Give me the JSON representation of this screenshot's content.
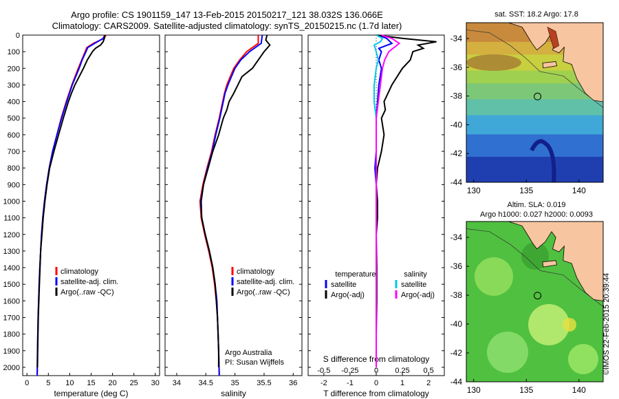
{
  "header": {
    "line1": "Argo profile: CS 1901159_147 13-Feb-2015 20150217_121 38.032S 136.066E",
    "line2": "Climatology: CARS2009. Satellite-adjusted climatology: synTS_20150215.nc (1.7d later)"
  },
  "chart_data": [
    {
      "id": "temperature",
      "type": "line",
      "xlabel": "temperature (deg C)",
      "ylabel": "",
      "xlim": [
        -1,
        31
      ],
      "ylim": [
        2050,
        0
      ],
      "xticks": [
        0,
        5,
        10,
        15,
        20,
        25,
        30
      ],
      "xtick_labels": [
        "0",
        "5",
        "10",
        "15",
        "20",
        "25",
        "30"
      ],
      "yticks": [
        0,
        100,
        200,
        300,
        400,
        500,
        600,
        700,
        800,
        900,
        1000,
        1100,
        1200,
        1300,
        1400,
        1500,
        1600,
        1700,
        1800,
        1900,
        2000
      ],
      "ytick_labels": [
        "0",
        "100",
        "200",
        "300",
        "400",
        "500",
        "600",
        "700",
        "800",
        "900",
        "1000",
        "1100",
        "1200",
        "1300",
        "1400",
        "1500",
        "1600",
        "1700",
        "1800",
        "1900",
        "2000"
      ],
      "legend": [
        "climatology",
        "satellite-adj. clim.",
        "Argo(..raw -QC)"
      ],
      "series": [
        {
          "name": "climatology",
          "color": "#ff0000",
          "depth": [
            0,
            20,
            50,
            75,
            100,
            150,
            200,
            300,
            400,
            500,
            600,
            700,
            800,
            900,
            1000,
            1100,
            1200,
            1300,
            1400,
            1500,
            1700,
            1900,
            2050
          ],
          "values": [
            18.5,
            18,
            15.5,
            14,
            13.6,
            12.8,
            12,
            10.5,
            9.2,
            8.0,
            7.0,
            6.0,
            5.2,
            4.6,
            4.1,
            3.7,
            3.4,
            3.2,
            3.0,
            2.85,
            2.6,
            2.45,
            2.4
          ]
        },
        {
          "name": "satellite-adj. clim.",
          "color": "#0000ff",
          "depth": [
            0,
            20,
            50,
            75,
            100,
            150,
            200,
            300,
            400,
            500,
            600,
            700,
            800,
            900,
            1000,
            1100,
            1200,
            1300,
            1400,
            1500,
            1700,
            1900,
            2050
          ],
          "values": [
            18.2,
            17.8,
            15.8,
            14.2,
            13.8,
            12.9,
            12.2,
            10.6,
            9.3,
            8.1,
            7.0,
            6.0,
            5.2,
            4.6,
            4.1,
            3.7,
            3.4,
            3.2,
            3.0,
            2.85,
            2.6,
            2.45,
            2.4
          ]
        },
        {
          "name": "Argo(..raw -QC)",
          "color": "#000000",
          "depth": [
            0,
            20,
            40,
            60,
            80,
            100,
            150,
            200,
            250,
            300,
            350,
            400,
            500,
            600,
            700,
            800,
            900,
            1000,
            1100,
            1200,
            1300,
            1400,
            1500,
            1700,
            1900,
            2000
          ],
          "values": [
            18.2,
            18.1,
            17.8,
            17.2,
            16.0,
            15.3,
            14.1,
            13.2,
            12.2,
            11.2,
            10.4,
            9.7,
            8.5,
            7.4,
            6.3,
            5.3,
            4.7,
            4.2,
            3.8,
            3.5,
            3.2,
            3.05,
            2.9,
            2.65,
            2.5,
            2.45
          ]
        }
      ]
    },
    {
      "id": "salinity",
      "type": "line",
      "xlabel": "salinity",
      "ylabel": "",
      "xlim": [
        33.8,
        36.15
      ],
      "ylim": [
        2050,
        0
      ],
      "xticks": [
        34,
        34.5,
        35,
        35.5,
        36
      ],
      "xtick_labels": [
        "34",
        "34.5",
        "35",
        "35.5",
        "36"
      ],
      "legend": [
        "climatology",
        "satellite-adj. clim.",
        "Argo(..raw -QC)"
      ],
      "annotation": [
        "Argo Australia",
        "PI: Susan Wijffels"
      ],
      "series": [
        {
          "name": "climatology",
          "color": "#ff0000",
          "depth": [
            0,
            50,
            100,
            150,
            200,
            250,
            300,
            350,
            400,
            450,
            500,
            600,
            700,
            800,
            900,
            1000,
            1100,
            1200,
            1300,
            1400,
            1500,
            1600,
            1700,
            1800,
            1900,
            2050
          ],
          "values": [
            35.4,
            35.4,
            35.2,
            35.08,
            34.98,
            34.92,
            34.86,
            34.82,
            34.79,
            34.76,
            34.73,
            34.66,
            34.6,
            34.52,
            34.45,
            34.4,
            34.42,
            34.48,
            34.55,
            34.61,
            34.65,
            34.68,
            34.7,
            34.71,
            34.72,
            34.73
          ]
        },
        {
          "name": "satellite-adj. clim.",
          "color": "#0000ff",
          "depth": [
            0,
            50,
            100,
            150,
            200,
            250,
            300,
            350,
            400,
            450,
            500,
            600,
            700,
            800,
            900,
            1000,
            1100,
            1200,
            1300,
            1400,
            1500,
            1600,
            1700,
            1800,
            1900,
            2050
          ],
          "values": [
            35.47,
            35.45,
            35.25,
            35.1,
            35.0,
            34.94,
            34.88,
            34.83,
            34.8,
            34.77,
            34.74,
            34.67,
            34.61,
            34.53,
            34.46,
            34.41,
            34.43,
            34.49,
            34.56,
            34.62,
            34.66,
            34.69,
            34.7,
            34.71,
            34.72,
            34.73
          ]
        },
        {
          "name": "Argo(..raw -QC)",
          "color": "#000000",
          "depth": [
            0,
            30,
            60,
            100,
            150,
            200,
            250,
            300,
            350,
            400,
            450,
            500,
            600,
            700,
            800,
            900,
            1000,
            1100,
            1200,
            1300,
            1400,
            1500,
            1600,
            1700,
            1800,
            1900,
            2000
          ],
          "values": [
            35.55,
            35.53,
            35.6,
            35.5,
            35.4,
            35.3,
            35.12,
            35.05,
            34.98,
            34.9,
            34.86,
            34.8,
            34.72,
            34.62,
            34.54,
            34.46,
            34.42,
            34.43,
            34.49,
            34.56,
            34.62,
            34.66,
            34.68,
            34.7,
            34.71,
            34.72,
            34.72
          ]
        }
      ]
    },
    {
      "id": "difference",
      "type": "line",
      "xlabel": "T difference from climatology",
      "top_axis_label": "S difference from climatology",
      "xlim": [
        -2.6,
        2.6
      ],
      "ylim": [
        2050,
        0
      ],
      "xticks": [
        -2,
        -1,
        0,
        1,
        2
      ],
      "xtick_labels": [
        "-2",
        "-1",
        "0",
        "1",
        "2"
      ],
      "top_xticks": [
        -0.5,
        -0.25,
        0,
        0.25,
        0.5
      ],
      "top_xtick_labels": [
        "-0.5",
        "-0.25",
        "0",
        "0.25",
        "0.5"
      ],
      "legend_left_title": "temperature",
      "legend_right_title": "salinity",
      "legend": [
        "satellite",
        "Argo(-adj)",
        "satellite",
        "Argo(-adj)"
      ],
      "series": [
        {
          "name": "satellite",
          "color": "#0000ff",
          "depth": [
            0,
            20,
            50,
            80,
            100,
            150,
            200,
            300,
            400,
            500,
            700,
            800,
            900,
            1000,
            1200,
            1400,
            1600,
            2000
          ],
          "values": [
            0.1,
            0.4,
            0.6,
            0.1,
            0.2,
            0.1,
            0.2,
            0.1,
            0.05,
            0.0,
            0.0,
            -0.05,
            0.0,
            0.0,
            0.0,
            0.0,
            0.0,
            0.0
          ]
        },
        {
          "name": "Argo(-adj)",
          "color": "#000000",
          "depth": [
            0,
            20,
            40,
            60,
            80,
            100,
            150,
            200,
            300,
            400,
            450,
            500,
            600,
            700,
            800,
            900,
            1000,
            1100,
            1200,
            1400,
            1600,
            1800,
            2000
          ],
          "values": [
            0.0,
            1.0,
            2.3,
            1.6,
            1.8,
            1.4,
            1.3,
            1.0,
            0.6,
            0.3,
            0.35,
            0.2,
            0.3,
            0.2,
            0.05,
            0.0,
            0.05,
            0.05,
            0.0,
            0.02,
            0.02,
            0.0,
            0.0
          ]
        },
        {
          "name": "satellite",
          "color": "#00c8e6",
          "depth": [
            0,
            20,
            40,
            60,
            100,
            150,
            200,
            300,
            400,
            500,
            700,
            900,
            1000,
            1200,
            1500,
            2000
          ],
          "values": [
            0.0,
            0.06,
            0.04,
            -0.02,
            0.0,
            0.02,
            0.0,
            -0.02,
            -0.02,
            0.0,
            0.0,
            0.0,
            0.0,
            0.0,
            0.0,
            0.0
          ]
        },
        {
          "name": "Argo(-adj)",
          "color": "#ff00ff",
          "depth": [
            0,
            20,
            50,
            100,
            150,
            200,
            300,
            400,
            500,
            700,
            900,
            1000,
            1200,
            1500,
            2000
          ],
          "values": [
            0.05,
            0.15,
            0.22,
            0.12,
            0.08,
            0.06,
            0.04,
            0.02,
            0.0,
            0.0,
            0.0,
            0.0,
            0.0,
            0.0,
            0.0
          ]
        }
      ]
    }
  ],
  "maps": [
    {
      "id": "sst-map",
      "title": "sat. SST: 18.2  Argo: 17.8",
      "xticks": [
        "130",
        "135",
        "140"
      ],
      "yticks": [
        "-34",
        "-36",
        "-38",
        "-40",
        "-42",
        "-44"
      ]
    },
    {
      "id": "sla-map",
      "title_line1": "Altim. SLA: 0.019",
      "title_line2": "Argo h1000: 0.027 h2000: 0.0093",
      "xticks": [
        "130",
        "135",
        "140"
      ],
      "yticks": [
        "-34",
        "-36",
        "-38",
        "-40",
        "-42",
        "-44"
      ]
    }
  ],
  "watermark": "©IMOS 22-Feb-2015 20:39:44",
  "colors": {
    "climatology": "#ff0000",
    "satellite": "#0000ff",
    "argo": "#000000",
    "sal_sat": "#00c8e6",
    "sal_argo": "#ff00ff",
    "land": "#f7c59f"
  }
}
